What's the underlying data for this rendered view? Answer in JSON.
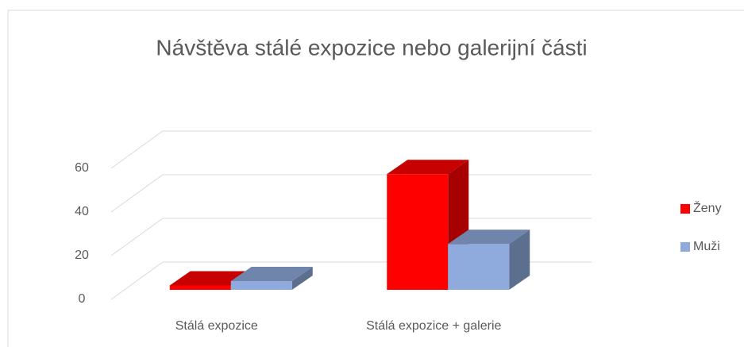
{
  "chart_data": {
    "type": "bar3d",
    "title": "Návštěva stálé expozice nebo galerijní části",
    "categories": [
      "Stálá expozice",
      "Stálá expozice + galerie"
    ],
    "series": [
      {
        "name": "Ženy",
        "color": "#ff0000",
        "values": [
          2,
          53
        ]
      },
      {
        "name": "Muži",
        "color": "#8faadc",
        "values": [
          4,
          21
        ]
      }
    ],
    "ylim": [
      0,
      60
    ],
    "yticks": [
      0,
      20,
      40,
      60
    ],
    "grid": true,
    "legend": "right"
  }
}
